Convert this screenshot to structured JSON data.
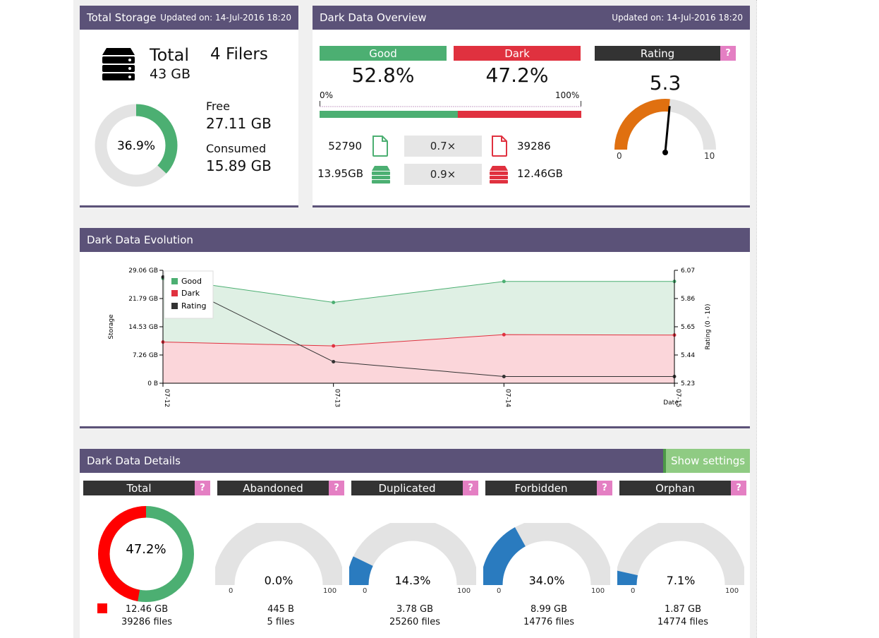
{
  "total_storage": {
    "title": "Total Storage",
    "updated": "Updated on: 14-Jul-2016 18:20",
    "total_label": "Total",
    "total_value": "43 GB",
    "filers": "4 Filers",
    "free_label": "Free",
    "free_value": "27.11 GB",
    "consumed_label": "Consumed",
    "consumed_value": "15.89 GB",
    "donut_pct_text": "36.9%",
    "donut_fraction": 0.369
  },
  "overview": {
    "title": "Dark Data Overview",
    "updated": "Updated on: 14-Jul-2016 18:20",
    "good_label": "Good",
    "good_pct": "52.8%",
    "good_fraction": 0.528,
    "dark_label": "Dark",
    "dark_pct": "47.2%",
    "scale_min": "0%",
    "scale_max": "100%",
    "good_files": "52790",
    "files_ratio": "0.7×",
    "dark_files": "39286",
    "good_size": "13.95GB",
    "size_ratio": "0.9×",
    "dark_size": "12.46GB",
    "rating_label": "Rating",
    "rating_help": "?",
    "rating_value": "5.3",
    "rating_min": "0",
    "rating_max": "10",
    "rating_fraction": 0.53
  },
  "evolution": {
    "title": "Dark Data Evolution",
    "legend": [
      "Good",
      "Dark",
      "Rating"
    ]
  },
  "chart_data": {
    "type": "area",
    "categories": [
      "07-12",
      "07-13",
      "07-14",
      "07-15"
    ],
    "series": [
      {
        "name": "Good",
        "values": [
          27.0,
          20.8,
          26.2,
          26.2
        ],
        "color": "#4caf72"
      },
      {
        "name": "Dark",
        "values": [
          10.6,
          9.6,
          12.5,
          12.4
        ],
        "color": "#e0313f"
      },
      {
        "name": "Rating",
        "values": [
          6.02,
          5.39,
          5.28,
          5.28
        ],
        "color": "#333333",
        "axis": "right"
      }
    ],
    "ylabel": "Storage",
    "y2label": "Rating (0 - 10)",
    "xlabel": "Date",
    "ylim": [
      0,
      29.06
    ],
    "y2lim": [
      5.23,
      6.07
    ],
    "yticks": [
      "0 B",
      "7.26 GB",
      "14.53 GB",
      "21.79 GB",
      "29.06 GB"
    ],
    "y2ticks": [
      "5.23",
      "5.44",
      "5.65",
      "5.86",
      "6.07"
    ]
  },
  "details": {
    "title": "Dark Data Details",
    "show_settings": "Show settings",
    "help": "?",
    "total": {
      "label": "Total",
      "pct": "47.2%",
      "fraction": 0.472,
      "size": "12.46 GB",
      "files": "39286 files"
    },
    "gauges": [
      {
        "label": "Abandoned",
        "pct": "0.0%",
        "fraction": 0.0,
        "size": "445 B",
        "files": "5 files",
        "min": "0",
        "max": "100"
      },
      {
        "label": "Duplicated",
        "pct": "14.3%",
        "fraction": 0.143,
        "size": "3.78 GB",
        "files": "25260 files",
        "min": "0",
        "max": "100"
      },
      {
        "label": "Forbidden",
        "pct": "34.0%",
        "fraction": 0.34,
        "size": "8.99 GB",
        "files": "14776 files",
        "min": "0",
        "max": "100"
      },
      {
        "label": "Orphan",
        "pct": "7.1%",
        "fraction": 0.071,
        "size": "1.87 GB",
        "files": "14774 files",
        "min": "0",
        "max": "100"
      }
    ]
  },
  "colors": {
    "header": "#5b5278",
    "good": "#4caf72",
    "dark": "#e0313f",
    "rating": "#e07010",
    "gauge_fill": "#2a7bbf",
    "help": "#e47fc3"
  }
}
